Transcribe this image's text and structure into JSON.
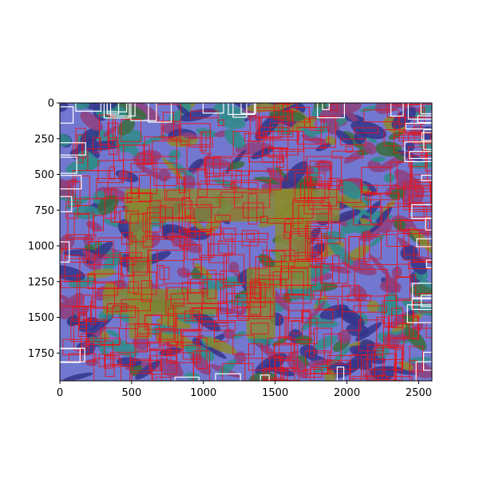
{
  "chart_data": {
    "type": "image",
    "title": "",
    "xlabel": "",
    "ylabel": "",
    "xlim": [
      0,
      2592
    ],
    "ylim": [
      1944,
      0
    ],
    "x_ticks": [
      "0",
      "500",
      "1000",
      "1500",
      "2000",
      "2500"
    ],
    "x_tick_values": [
      0,
      500,
      1000,
      1500,
      2000,
      2500
    ],
    "y_ticks": [
      "0",
      "250",
      "500",
      "750",
      "1000",
      "1250",
      "1500",
      "1750"
    ],
    "y_tick_values": [
      0,
      250,
      500,
      750,
      1000,
      1250,
      1500,
      1750
    ],
    "grid": false,
    "legend": "none",
    "colors": {
      "background_region": "#7278d0",
      "dark_region": "#34358a",
      "segment_olive": "#8a8a30",
      "segment_teal": "#2f8c8a",
      "segment_purple": "#8e3f7e",
      "segment_green": "#3a6c3c",
      "box_red": "#e8141c",
      "box_white": "#ffffff"
    },
    "annotation_box_colors": [
      "red",
      "white"
    ]
  }
}
